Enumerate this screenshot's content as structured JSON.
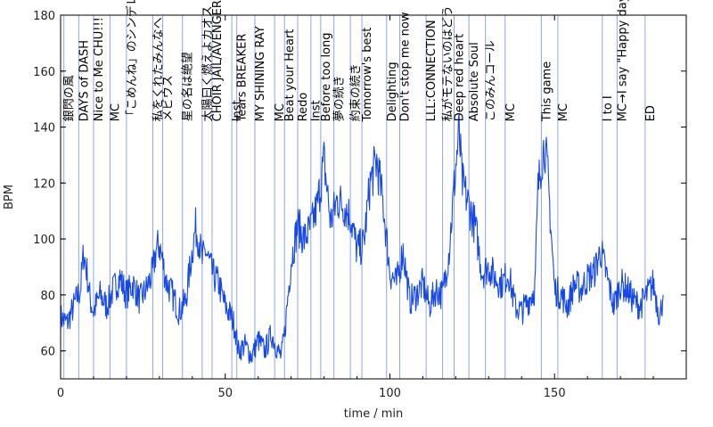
{
  "chart_data": {
    "type": "line",
    "title": "",
    "xlabel": "time / min",
    "ylabel": "BPM",
    "xlim": [
      0,
      190
    ],
    "ylim": [
      50,
      180
    ],
    "xticks": [
      "0",
      "50",
      "100",
      "150"
    ],
    "yticks": [
      "60",
      "80",
      "100",
      "120",
      "140",
      "160",
      "180"
    ],
    "grid": false,
    "line_color": "#1548e6",
    "marker_color": "#8ea4f0",
    "series": [
      {
        "values_note": "",
        "x": [
          0,
          2,
          4,
          6,
          7,
          8,
          9,
          10,
          12,
          14,
          16,
          18,
          20,
          22,
          24,
          26,
          28,
          29,
          30,
          31,
          32,
          34,
          36,
          38,
          40,
          41,
          42,
          43,
          44,
          46,
          48,
          50,
          52,
          53,
          54,
          56,
          58,
          60,
          62,
          64,
          66,
          67,
          68,
          70,
          72,
          74,
          76,
          78,
          80,
          82,
          84,
          86,
          88,
          90,
          92,
          94,
          96,
          98,
          100,
          102,
          104,
          106,
          108,
          110,
          112,
          114,
          116,
          118,
          120,
          121,
          122,
          124,
          126,
          128,
          130,
          132,
          134,
          136,
          138,
          140,
          142,
          144,
          145,
          146,
          147,
          148,
          150,
          152,
          154,
          156,
          158,
          160,
          162,
          164,
          166,
          168,
          170,
          172,
          174,
          176,
          178,
          180,
          182,
          183
        ],
        "y": [
          72,
          70,
          76,
          82,
          95,
          88,
          78,
          74,
          80,
          76,
          82,
          86,
          80,
          84,
          78,
          82,
          88,
          96,
          98,
          92,
          85,
          80,
          74,
          78,
          96,
          104,
          100,
          92,
          96,
          88,
          84,
          76,
          72,
          68,
          60,
          62,
          58,
          64,
          60,
          66,
          60,
          58,
          66,
          92,
          105,
          100,
          104,
          112,
          128,
          106,
          114,
          112,
          108,
          96,
          98,
          120,
          128,
          112,
          88,
          84,
          96,
          78,
          80,
          84,
          76,
          82,
          80,
          96,
          126,
          138,
          120,
          112,
          104,
          88,
          90,
          86,
          84,
          88,
          76,
          74,
          78,
          82,
          118,
          128,
          134,
          122,
          82,
          80,
          76,
          84,
          82,
          86,
          88,
          96,
          86,
          76,
          84,
          82,
          78,
          76,
          80,
          84,
          72,
          80
        ]
      }
    ],
    "markers": [
      {
        "x": 1,
        "label": "銀閃の風"
      },
      {
        "x": 5.5,
        "label": "DAYS of DASH"
      },
      {
        "x": 10,
        "label": "Nice to Me CHU!!!"
      },
      {
        "x": 15,
        "label": "MC"
      },
      {
        "x": 20,
        "label": "「こめんね」のシンデレ"
      },
      {
        "x": 28,
        "label": "私をくれたみんなへ"
      },
      {
        "x": 31,
        "label": "メビウス"
      },
      {
        "x": 37,
        "label": "星の名は絶望"
      },
      {
        "x": 43,
        "label": "太陽曰く燃えよカオス"
      },
      {
        "x": 46,
        "label": "CHOIR JAIL/AVENGER"
      },
      {
        "x": 52,
        "label": "Inst"
      },
      {
        "x": 53.5,
        "label": "Tears BREAKER"
      },
      {
        "x": 59,
        "label": "MY SHINING RAY"
      },
      {
        "x": 65,
        "label": "MC"
      },
      {
        "x": 68,
        "label": "Beat your Heart"
      },
      {
        "x": 72,
        "label": "Redo"
      },
      {
        "x": 76,
        "label": "Inst"
      },
      {
        "x": 79,
        "label": "Before too long"
      },
      {
        "x": 83,
        "label": "夢の続き"
      },
      {
        "x": 88,
        "label": "約束の続き"
      },
      {
        "x": 91.5,
        "label": "Tomorrow's best"
      },
      {
        "x": 99,
        "label": "Delighting"
      },
      {
        "x": 103,
        "label": "Don't stop me now"
      },
      {
        "x": 111,
        "label": "LLL:CONNECTION"
      },
      {
        "x": 116,
        "label": "私がモテないのはどう"
      },
      {
        "x": 119.5,
        "label": "Deep red heart"
      },
      {
        "x": 124,
        "label": "Absolute Soul"
      },
      {
        "x": 129,
        "label": "このみんコール"
      },
      {
        "x": 135,
        "label": "MC"
      },
      {
        "x": 146,
        "label": "This game"
      },
      {
        "x": 151,
        "label": "MC"
      },
      {
        "x": 164.5,
        "label": "I to I"
      },
      {
        "x": 169,
        "label": "MC→I say \"Happy day!\""
      },
      {
        "x": 177.5,
        "label": "ED"
      }
    ]
  }
}
